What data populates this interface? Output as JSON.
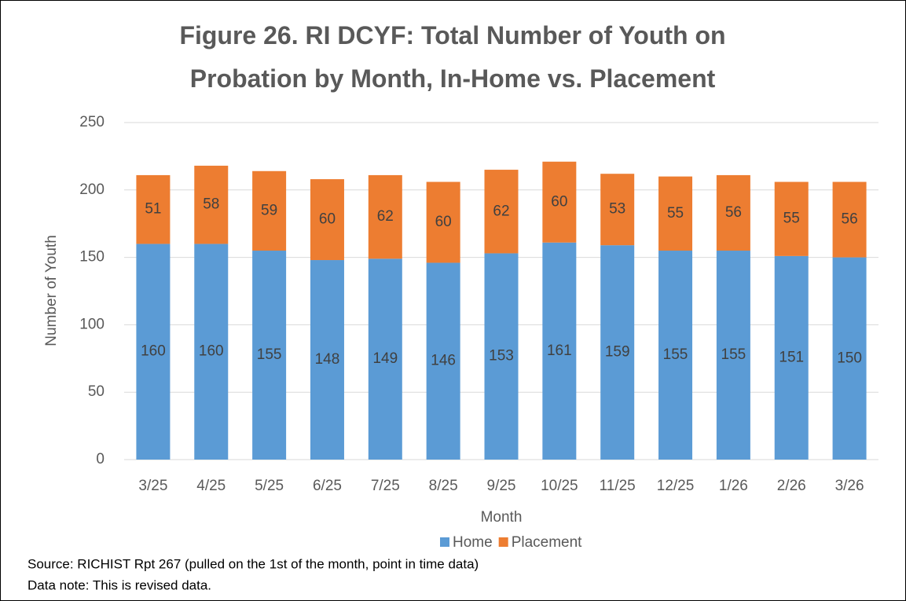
{
  "chart_data": {
    "type": "stacked_bar",
    "title": "Figure 26. RI DCYF: Total Number of Youth on Probation by Month, In-Home vs. Placement",
    "x_label": "Month",
    "y_label": "Number of Youth",
    "categories": [
      "3/25",
      "4/25",
      "5/25",
      "6/25",
      "7/25",
      "8/25",
      "9/25",
      "10/25",
      "11/25",
      "12/25",
      "1/26",
      "2/26",
      "3/26"
    ],
    "series": [
      {
        "name": "Home",
        "color": "#5b9bd5",
        "values": [
          160,
          160,
          155,
          148,
          149,
          146,
          153,
          161,
          159,
          155,
          155,
          151,
          150
        ]
      },
      {
        "name": "Placement",
        "color": "#ed7d31",
        "values": [
          51,
          58,
          59,
          60,
          62,
          60,
          62,
          60,
          53,
          55,
          56,
          55,
          56
        ]
      }
    ],
    "ylim": [
      0,
      250
    ],
    "yticks": [
      0,
      50,
      100,
      150,
      200,
      250
    ],
    "grid": true,
    "legend": "bottom",
    "notes": [
      "Source: RICHIST Rpt 267 (pulled on the 1st of the month, point in time data)",
      "Data note: This is revised data."
    ]
  }
}
